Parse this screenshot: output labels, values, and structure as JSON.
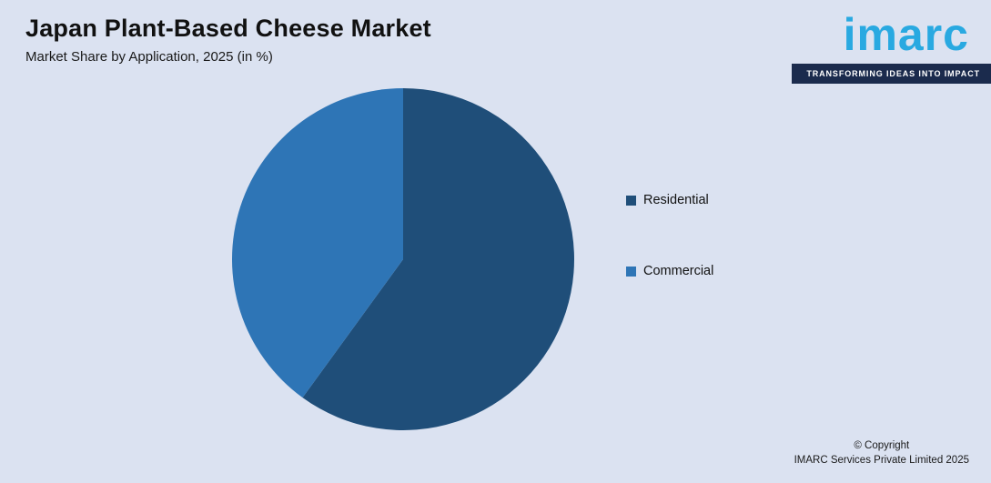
{
  "header": {
    "title": "Japan Plant-Based Cheese Market",
    "subtitle": "Market Share by Application, 2025 (in %)"
  },
  "logo": {
    "brand": "imarc",
    "tagline": "TRANSFORMING IDEAS INTO IMPACT"
  },
  "legend": {
    "items": [
      {
        "label": "Residential",
        "color": "#1f4e79"
      },
      {
        "label": "Commercial",
        "color": "#2e75b6"
      }
    ]
  },
  "footer": {
    "copyright_line1": "© Copyright",
    "copyright_line2": "IMARC Services Private Limited 2025"
  },
  "colors": {
    "background": "#dbe2f1",
    "brand_blue": "#29a9e1",
    "tagline_bar": "#1b2b4d"
  },
  "chart_data": {
    "type": "pie",
    "title": "Japan Plant-Based Cheese Market",
    "subtitle": "Market Share by Application, 2025 (in %)",
    "labels": [
      "Residential",
      "Commercial"
    ],
    "values": [
      60,
      40
    ],
    "colors": [
      "#1f4e79",
      "#2e75b6"
    ],
    "start_angle_deg": 0,
    "direction": "clockwise",
    "legend_position": "right",
    "data_labels_visible": false
  }
}
